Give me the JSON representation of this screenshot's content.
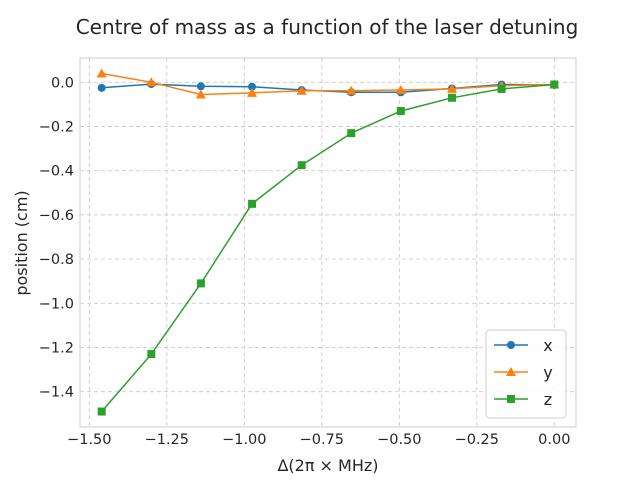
{
  "chart_data": {
    "type": "line",
    "title": "Centre of mass as a function of the laser detuning",
    "xlabel": "Δ(2π × MHz)",
    "ylabel": "position (cm)",
    "xlim": [
      -1.53,
      0.07
    ],
    "ylim": [
      -1.56,
      0.11
    ],
    "xticks": [
      -1.5,
      -1.25,
      -1.0,
      -0.75,
      -0.5,
      -0.25,
      0.0
    ],
    "xtick_labels": [
      "−1.50",
      "−1.25",
      "−1.00",
      "−0.75",
      "−0.50",
      "−0.25",
      "0.00"
    ],
    "yticks": [
      0.0,
      -0.2,
      -0.4,
      -0.6,
      -0.8,
      -1.0,
      -1.2,
      -1.4
    ],
    "ytick_labels": [
      "0.0",
      "−0.2",
      "−0.4",
      "−0.6",
      "−0.8",
      "−1.0",
      "−1.2",
      "−1.4"
    ],
    "grid": true,
    "legend_position": "bottom-right",
    "x": [
      -1.46,
      -1.3,
      -1.14,
      -0.975,
      -0.815,
      -0.655,
      -0.495,
      -0.33,
      -0.17,
      0.0
    ],
    "series": [
      {
        "name": "x",
        "color": "#1f77b4",
        "marker": "circle",
        "values": [
          -0.025,
          -0.008,
          -0.018,
          -0.02,
          -0.035,
          -0.045,
          -0.045,
          -0.028,
          -0.01,
          -0.012
        ]
      },
      {
        "name": "y",
        "color": "#ff7f0e",
        "marker": "triangle",
        "values": [
          0.04,
          0.0,
          -0.055,
          -0.048,
          -0.038,
          -0.038,
          -0.035,
          -0.03,
          -0.015,
          -0.01
        ]
      },
      {
        "name": "z",
        "color": "#2ca02c",
        "marker": "square",
        "values": [
          -1.49,
          -1.23,
          -0.91,
          -0.55,
          -0.375,
          -0.23,
          -0.13,
          -0.07,
          -0.03,
          -0.01
        ]
      }
    ]
  }
}
